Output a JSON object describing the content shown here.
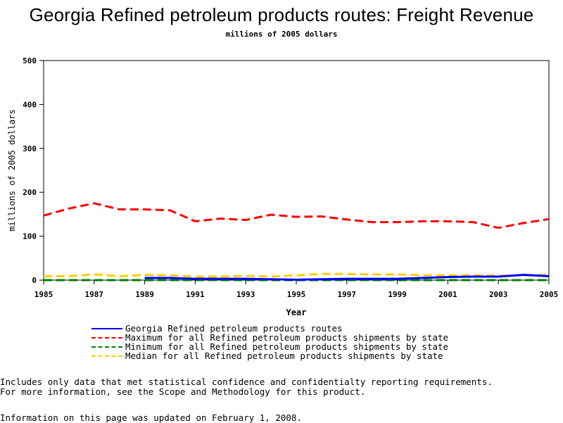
{
  "chart_data": {
    "type": "line",
    "title": "Georgia Refined petroleum products routes: Freight Revenue",
    "subtitle": "millions of 2005 dollars",
    "xlabel": "Year",
    "ylabel": "millions of 2005 dollars",
    "xlim": [
      1985,
      2005
    ],
    "ylim": [
      0,
      500
    ],
    "xticks": [
      "1985",
      "1987",
      "1989",
      "1991",
      "1993",
      "1995",
      "1997",
      "1999",
      "2001",
      "2003",
      "2005"
    ],
    "yticks": [
      "0",
      "100",
      "200",
      "300",
      "400",
      "500"
    ],
    "grid": false,
    "legend_position": "bottom",
    "x": [
      1985,
      1986,
      1987,
      1988,
      1989,
      1990,
      1991,
      1992,
      1993,
      1994,
      1995,
      1996,
      1997,
      1998,
      1999,
      2000,
      2001,
      2002,
      2003,
      2004,
      2005
    ],
    "series": [
      {
        "name": "Georgia Refined petroleum products routes",
        "color": "#0000ff",
        "dash": "solid",
        "values": [
          null,
          null,
          null,
          null,
          5,
          5,
          3,
          3,
          3,
          2,
          1,
          2,
          3,
          3,
          3,
          5,
          7,
          8,
          8,
          12,
          9
        ]
      },
      {
        "name": "Maximum for all Refined petroleum products shipments by state",
        "color": "#ff0000",
        "dash": "dashed",
        "values": [
          147,
          163,
          175,
          161,
          161,
          159,
          134,
          140,
          137,
          149,
          144,
          145,
          138,
          132,
          132,
          134,
          134,
          132,
          119,
          130,
          139
        ]
      },
      {
        "name": "Minimum for all Refined petroleum products shipments by state",
        "color": "#008000",
        "dash": "dashed",
        "values": [
          0,
          0,
          0,
          0,
          0,
          0,
          0,
          0,
          0,
          0,
          0,
          0,
          0,
          0,
          0,
          0,
          0,
          0,
          0,
          0,
          0
        ]
      },
      {
        "name": "Median for all Refined petroleum products shipments by state",
        "color": "#ffcc00",
        "dash": "dashed",
        "values": [
          9,
          9,
          13,
          9,
          12,
          11,
          8,
          8,
          10,
          8,
          11,
          14,
          14,
          13,
          13,
          11,
          11,
          11,
          10,
          11,
          12
        ]
      }
    ]
  },
  "notes": {
    "line1": "Includes only data that met statistical confidence and confidentialty reporting requirements.",
    "line2": "For more information, see the Scope and Methodology for this product.",
    "updated": "Information on this page was updated on February 1, 2008."
  }
}
